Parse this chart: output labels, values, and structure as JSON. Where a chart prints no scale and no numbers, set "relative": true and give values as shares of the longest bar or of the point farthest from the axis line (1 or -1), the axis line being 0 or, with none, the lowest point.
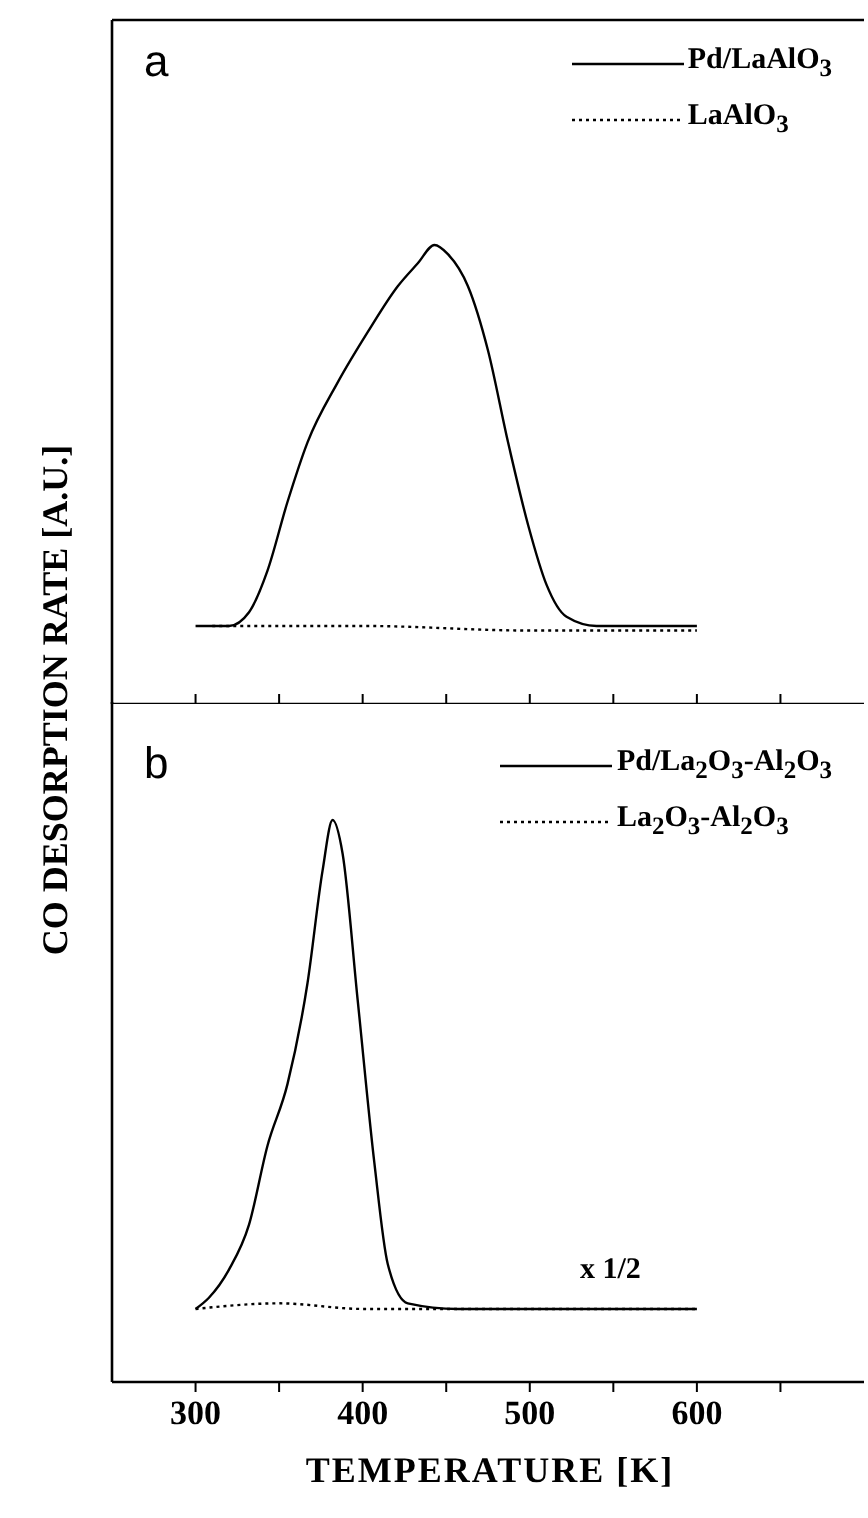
{
  "chart_data": [
    {
      "type": "line",
      "title": "a",
      "ylabel": "CO DESORPTION RATE [A.U.]",
      "relative": true,
      "xlim": [
        250,
        700
      ],
      "xticks": [
        300,
        {
          "value": 350,
          "label": null
        },
        400,
        {
          "value": 450,
          "label": null
        },
        500,
        {
          "value": 550,
          "label": null
        },
        600,
        {
          "value": 650,
          "label": null
        }
      ],
      "tick_labels": false,
      "legend": "top right",
      "series": [
        {
          "name": "Pd/LaAlO$_{3}$",
          "color": "#000000",
          "line_style": "solid",
          "x": [
            300,
            320,
            332,
            343,
            355,
            367,
            385,
            403,
            421,
            433,
            443,
            451,
            463,
            475,
            487,
            499,
            510,
            522,
            540,
            600
          ],
          "values": [
            0.17,
            0.17,
            0.2,
            0.29,
            0.44,
            0.57,
            0.7,
            0.81,
            0.91,
            0.96,
            1.0,
            0.98,
            0.91,
            0.77,
            0.57,
            0.39,
            0.26,
            0.19,
            0.17,
            0.17
          ]
        },
        {
          "name": "LaAlO$_{3}$",
          "color": "#000000",
          "line_style": "dotted",
          "x": [
            310,
            400,
            500,
            600
          ],
          "values": [
            0.17,
            0.17,
            0.16,
            0.16
          ]
        }
      ]
    },
    {
      "type": "line",
      "title": "b",
      "xlabel": "TEMPERATURE [K]",
      "relative": true,
      "xlim": [
        250,
        700
      ],
      "xticks": [
        300,
        {
          "value": 350,
          "label": null
        },
        400,
        {
          "value": 450,
          "label": null
        },
        500,
        {
          "value": 550,
          "label": null
        },
        600,
        {
          "value": 650,
          "label": null
        }
      ],
      "tick_labels": "x",
      "legend": "top right",
      "annotations": [
        "x 1/2"
      ],
      "series": [
        {
          "name": "Pd/La$_{2}$O$_{3}$-Al$_{2}$O$_{3}$",
          "color": "#000000",
          "line_style": "solid",
          "x": [
            300,
            308,
            320,
            332,
            343,
            355,
            367,
            376,
            382,
            388,
            397,
            407,
            415,
            427,
            457,
            600
          ],
          "values": [
            0.13,
            0.15,
            0.2,
            0.28,
            0.42,
            0.53,
            0.71,
            0.91,
            1.0,
            0.94,
            0.68,
            0.39,
            0.21,
            0.14,
            0.13,
            0.13
          ]
        },
        {
          "name": "La$_{2}$O$_{3}$-Al$_{2}$O$_{3}$",
          "color": "#000000",
          "line_style": "dotted",
          "x": [
            300,
            350,
            400,
            450,
            600
          ],
          "values": [
            0.13,
            0.14,
            0.13,
            0.13,
            0.13
          ]
        }
      ]
    }
  ]
}
